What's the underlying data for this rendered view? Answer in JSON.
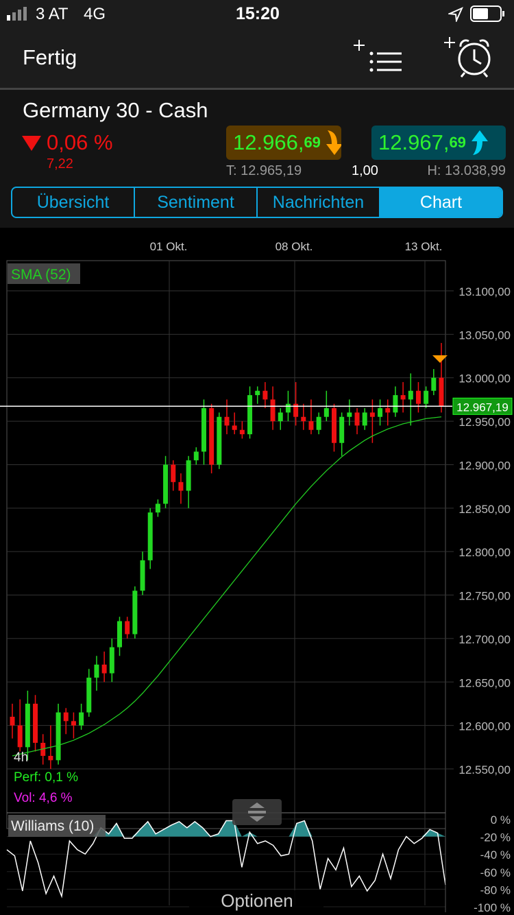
{
  "status_bar": {
    "carrier": "3 AT",
    "network": "4G",
    "time": "15:20",
    "icons": [
      "signal-icon",
      "location-arrow-icon",
      "battery-icon"
    ]
  },
  "nav": {
    "done_label": "Fertig",
    "add_watchlist_icon": "add-list-icon",
    "add_alarm_icon": "add-alarm-icon"
  },
  "instrument": {
    "name": "Germany 30 - Cash",
    "change_pct": "0,06 %",
    "change_abs": "7,22",
    "direction": "down",
    "bid_main": "12.966,",
    "bid_small": "69",
    "ask_main": "12.967,",
    "ask_small": "69",
    "low": "T: 12.965,19",
    "spread": "1,00",
    "high": "H: 13.038,99"
  },
  "tabs": [
    {
      "label": "Übersicht"
    },
    {
      "label": "Sentiment"
    },
    {
      "label": "Nachrichten"
    },
    {
      "label": "Chart",
      "active": true
    }
  ],
  "colors": {
    "accent": "#0ea7e0",
    "up": "#22d822",
    "down": "#ee1111",
    "sma": "#22cc22",
    "bid_bg": "#5a3a00",
    "ask_bg": "#004a55",
    "williams_fill": "#2a8a8a"
  },
  "chart": {
    "date_labels": [
      "01 Okt.",
      "08 Okt.",
      "13 Okt."
    ],
    "indicator_label": "SMA (52)",
    "interval": "4h",
    "perf": "Perf: 0,1 %",
    "vol": "Vol: 4,6 %",
    "current_price": "12.967,19",
    "williams_label": "Williams (10)",
    "options_label": "Optionen"
  },
  "chart_data": [
    {
      "type": "candlestick",
      "ylim": [
        12520,
        13120
      ],
      "y_ticks": [
        "13.100,00",
        "13.050,00",
        "13.000,00",
        "12.950,00",
        "12.900,00",
        "12.850,00",
        "12.800,00",
        "12.750,00",
        "12.700,00",
        "12.650,00",
        "12.600,00",
        "12.550,00"
      ],
      "y_tick_values": [
        13100,
        13050,
        13000,
        12950,
        12900,
        12850,
        12800,
        12750,
        12700,
        12650,
        12600,
        12550
      ],
      "current_price": 12967.19,
      "candles": [
        [
          12610,
          12625,
          12585,
          12600
        ],
        [
          12600,
          12630,
          12570,
          12575
        ],
        [
          12575,
          12640,
          12560,
          12625
        ],
        [
          12625,
          12635,
          12570,
          12580
        ],
        [
          12580,
          12590,
          12555,
          12565
        ],
        [
          12565,
          12600,
          12550,
          12560
        ],
        [
          12560,
          12625,
          12555,
          12615
        ],
        [
          12615,
          12620,
          12590,
          12605
        ],
        [
          12605,
          12615,
          12585,
          12600
        ],
        [
          12600,
          12625,
          12595,
          12615
        ],
        [
          12615,
          12665,
          12610,
          12655
        ],
        [
          12655,
          12680,
          12640,
          12670
        ],
        [
          12670,
          12685,
          12650,
          12660
        ],
        [
          12660,
          12700,
          12650,
          12690
        ],
        [
          12690,
          12725,
          12680,
          12720
        ],
        [
          12720,
          12725,
          12700,
          12705
        ],
        [
          12705,
          12760,
          12700,
          12755
        ],
        [
          12755,
          12800,
          12750,
          12790
        ],
        [
          12790,
          12850,
          12780,
          12845
        ],
        [
          12845,
          12860,
          12840,
          12855
        ],
        [
          12855,
          12910,
          12850,
          12900
        ],
        [
          12900,
          12905,
          12870,
          12880
        ],
        [
          12880,
          12890,
          12855,
          12870
        ],
        [
          12870,
          12910,
          12850,
          12905
        ],
        [
          12905,
          12920,
          12900,
          12915
        ],
        [
          12915,
          12975,
          12900,
          12965
        ],
        [
          12965,
          12970,
          12890,
          12900
        ],
        [
          12900,
          12960,
          12895,
          12955
        ],
        [
          12955,
          12975,
          12935,
          12945
        ],
        [
          12945,
          12960,
          12935,
          12940
        ],
        [
          12940,
          12950,
          12930,
          12935
        ],
        [
          12935,
          12990,
          12930,
          12980
        ],
        [
          12980,
          12990,
          12970,
          12985
        ],
        [
          12985,
          12995,
          12965,
          12975
        ],
        [
          12975,
          12990,
          12940,
          12950
        ],
        [
          12950,
          12965,
          12940,
          12960
        ],
        [
          12960,
          12985,
          12950,
          12970
        ],
        [
          12970,
          12995,
          12945,
          12955
        ],
        [
          12955,
          12970,
          12940,
          12950
        ],
        [
          12950,
          12975,
          12935,
          12940
        ],
        [
          12940,
          12960,
          12935,
          12955
        ],
        [
          12955,
          12985,
          12950,
          12965
        ],
        [
          12965,
          12970,
          12915,
          12925
        ],
        [
          12925,
          12960,
          12910,
          12955
        ],
        [
          12955,
          12975,
          12945,
          12960
        ],
        [
          12960,
          12965,
          12935,
          12945
        ],
        [
          12945,
          12965,
          12940,
          12960
        ],
        [
          12960,
          12975,
          12925,
          12955
        ],
        [
          12955,
          12975,
          12945,
          12965
        ],
        [
          12965,
          12975,
          12945,
          12960
        ],
        [
          12960,
          12990,
          12955,
          12980
        ],
        [
          12980,
          12995,
          12960,
          12975
        ],
        [
          12975,
          13005,
          12945,
          12985
        ],
        [
          12985,
          12995,
          12960,
          12970
        ],
        [
          12970,
          12990,
          12965,
          12985
        ],
        [
          12985,
          13010,
          12980,
          13000
        ],
        [
          13000,
          13040,
          12960,
          12967
        ]
      ],
      "sma": [
        12565,
        12567,
        12569,
        12571,
        12573,
        12575,
        12577,
        12580,
        12583,
        12587,
        12591,
        12596,
        12601,
        12607,
        12613,
        12620,
        12628,
        12637,
        12647,
        12657,
        12668,
        12679,
        12690,
        12701,
        12712,
        12723,
        12734,
        12745,
        12756,
        12767,
        12778,
        12789,
        12800,
        12811,
        12822,
        12833,
        12844,
        12855,
        12865,
        12875,
        12884,
        12893,
        12901,
        12909,
        12916,
        12922,
        12928,
        12933,
        12937,
        12941,
        12944,
        12947,
        12949,
        12951,
        12953,
        12954,
        12955
      ]
    },
    {
      "type": "line",
      "name": "Williams (10)",
      "ylim": [
        -100,
        0
      ],
      "y_ticks": [
        "0 %",
        "-20 %",
        "-40 %",
        "-60 %",
        "-80 %",
        "-100 %"
      ],
      "y_tick_values": [
        0,
        -20,
        -40,
        -60,
        -80,
        -100
      ],
      "fill_above": -20,
      "values": [
        -35,
        -42,
        -82,
        -25,
        -50,
        -85,
        -65,
        -88,
        -25,
        -35,
        -40,
        -28,
        -10,
        -17,
        -5,
        -22,
        -22,
        -12,
        -3,
        -17,
        -12,
        -7,
        -3,
        -10,
        -3,
        -10,
        -20,
        -17,
        -2,
        -2,
        -55,
        -15,
        -28,
        -25,
        -30,
        -42,
        -40,
        -5,
        -2,
        -25,
        -80,
        -45,
        -58,
        -33,
        -77,
        -65,
        -82,
        -70,
        -40,
        -68,
        -35,
        -20,
        -28,
        -22,
        -12,
        -16,
        -75
      ]
    }
  ]
}
